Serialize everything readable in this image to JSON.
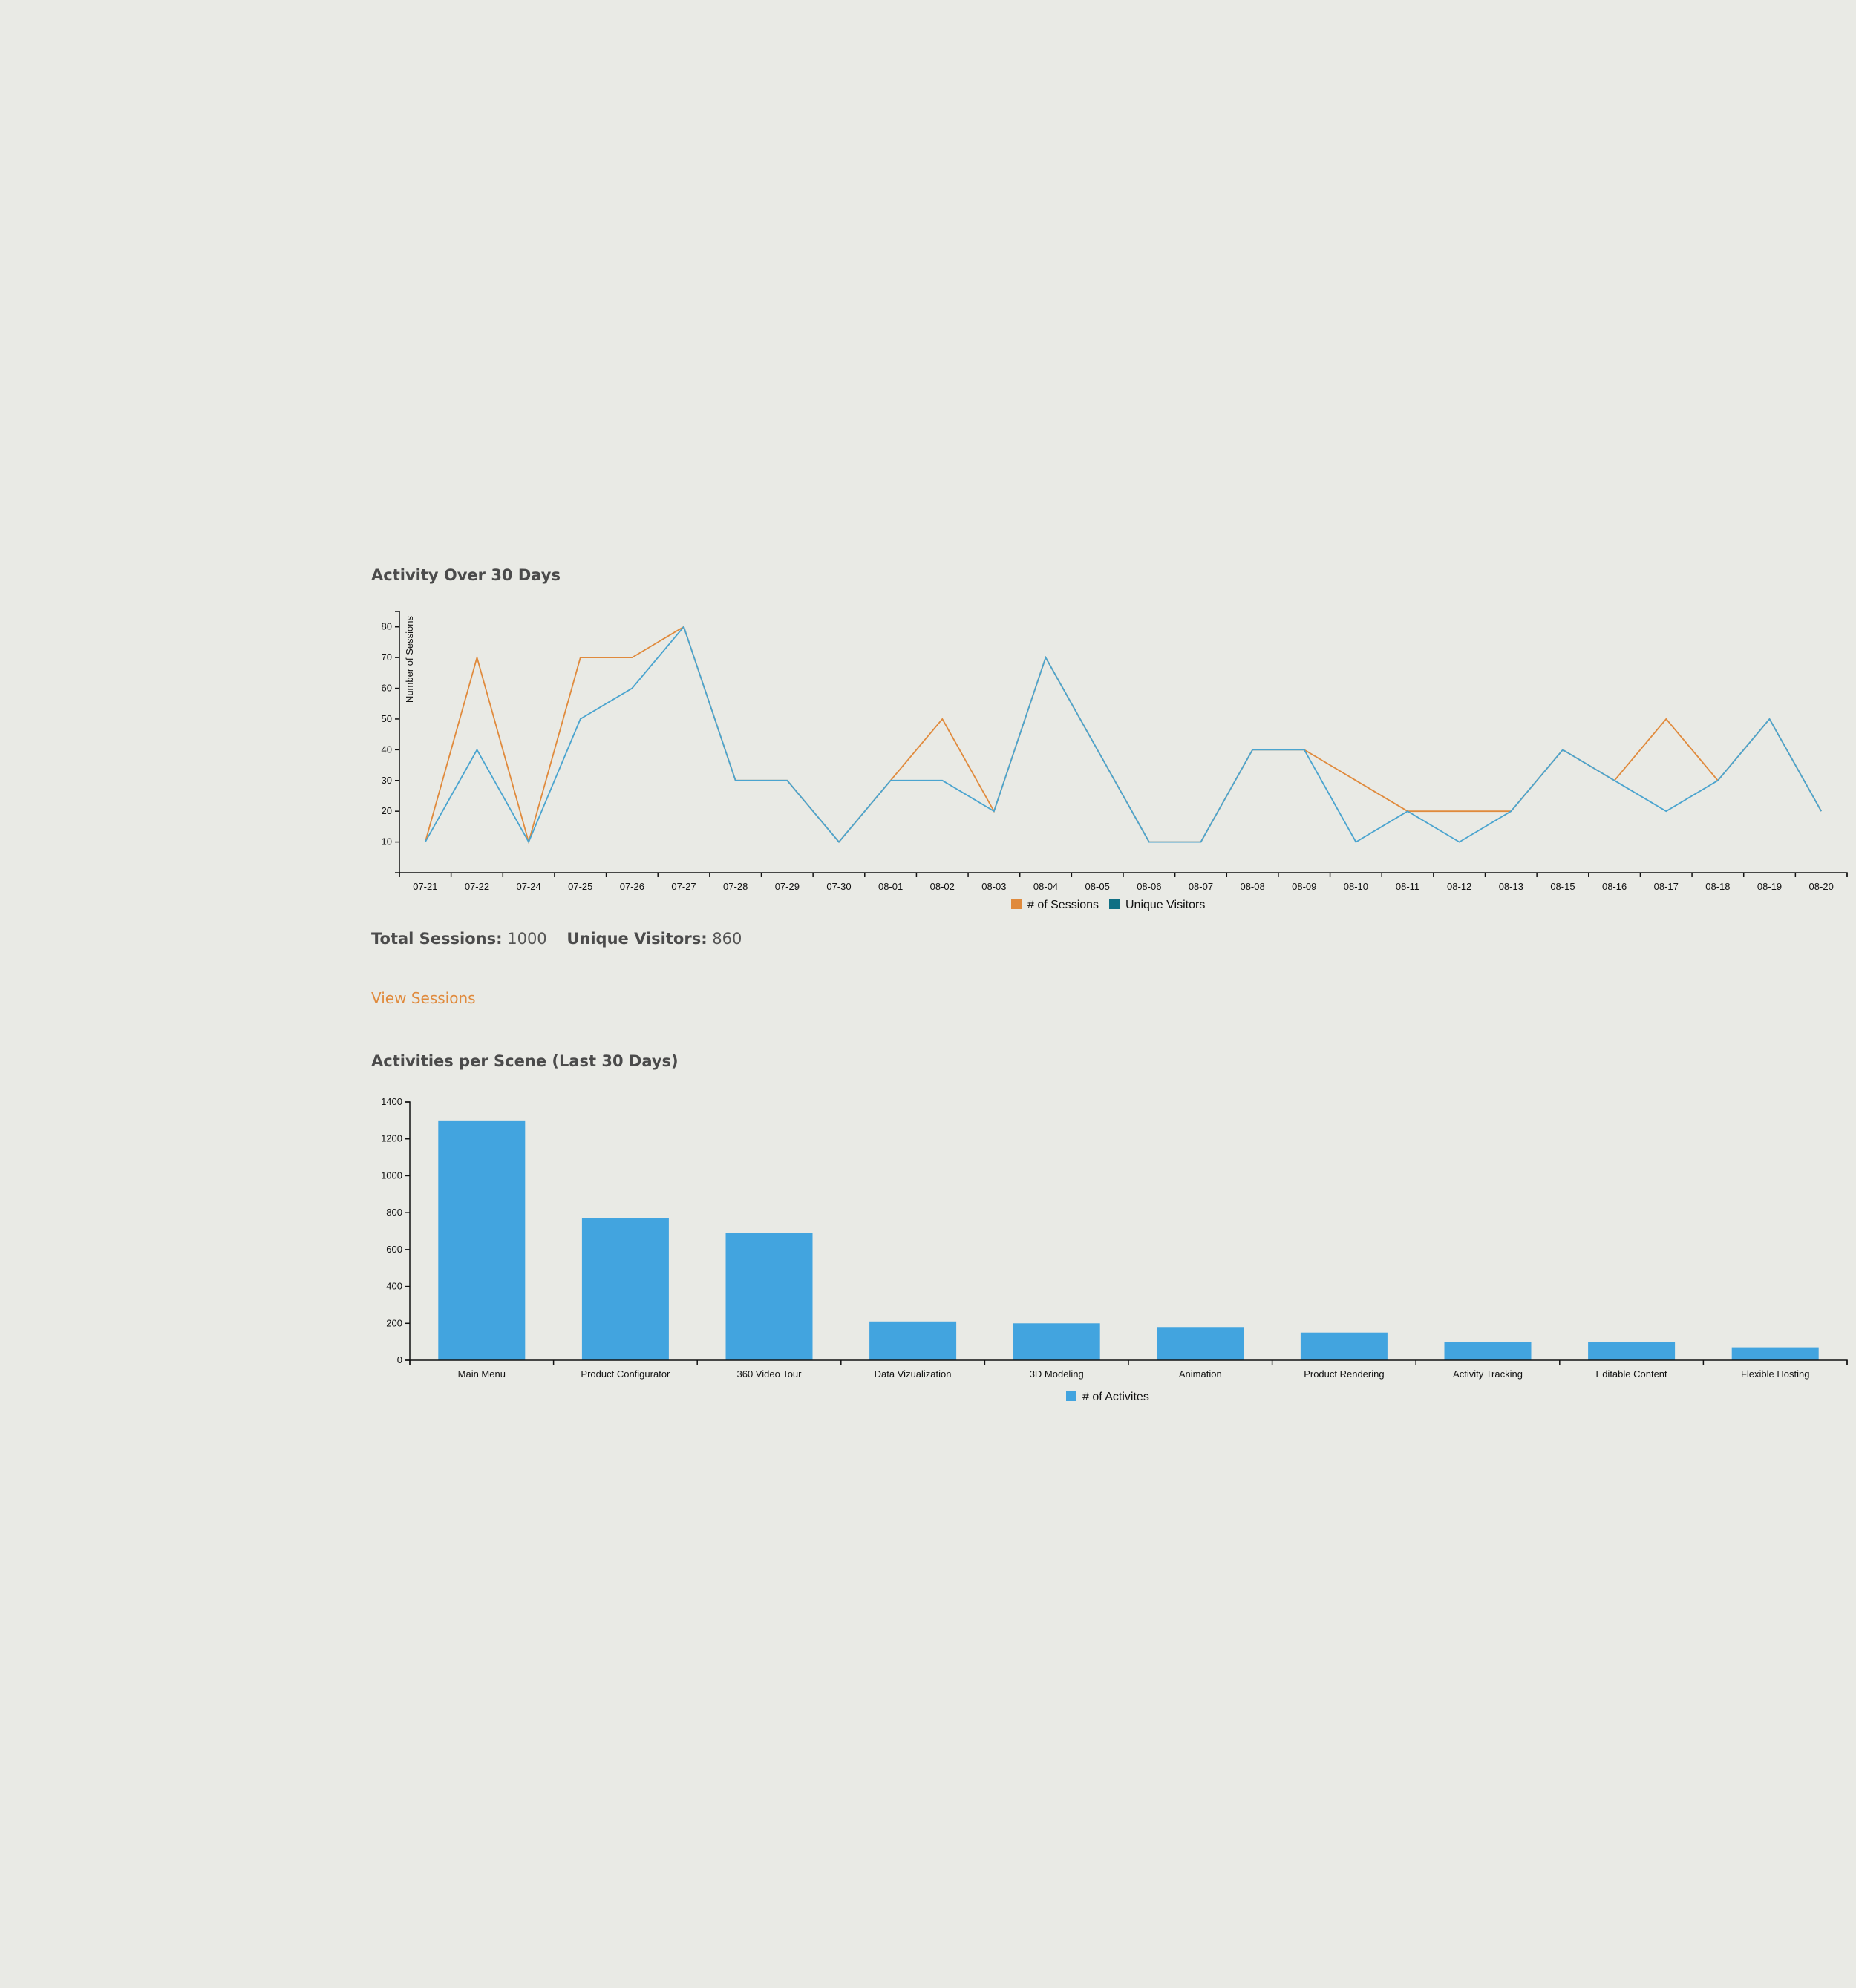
{
  "line_section": {
    "title": "Activity Over 30 Days"
  },
  "stats": {
    "total_sessions_label": "Total Sessions:",
    "total_sessions_value": "1000",
    "unique_visitors_label": "Unique Visitors:",
    "unique_visitors_value": "860"
  },
  "link": {
    "view_sessions": "View Sessions"
  },
  "bar_section": {
    "title": "Activities per Scene (Last 30 Days)"
  },
  "colors": {
    "sessions": "#e08a3c",
    "visitors": "#4aa4cf",
    "visitors_legend": "#0f6f84",
    "bar": "#42a4df"
  },
  "chart_data": [
    {
      "type": "line",
      "title": "Activity Over 30 Days",
      "ylabel": "Number of Sessions",
      "ylim": [
        0,
        85
      ],
      "yticks": [
        10,
        20,
        30,
        40,
        50,
        60,
        70,
        80
      ],
      "categories": [
        "07-21",
        "07-22",
        "07-24",
        "07-25",
        "07-26",
        "07-27",
        "07-28",
        "07-29",
        "07-30",
        "08-01",
        "08-02",
        "08-03",
        "08-04",
        "08-05",
        "08-06",
        "08-07",
        "08-08",
        "08-09",
        "08-10",
        "08-11",
        "08-12",
        "08-13",
        "08-15",
        "08-16",
        "08-17",
        "08-18",
        "08-19",
        "08-20"
      ],
      "series": [
        {
          "name": "# of Sessions",
          "values": [
            10,
            70,
            10,
            70,
            70,
            80,
            30,
            30,
            10,
            30,
            50,
            20,
            70,
            40,
            10,
            10,
            40,
            40,
            30,
            20,
            20,
            20,
            40,
            30,
            50,
            30,
            50,
            20
          ]
        },
        {
          "name": "Unique Visitors",
          "values": [
            10,
            40,
            10,
            50,
            60,
            80,
            30,
            30,
            10,
            30,
            30,
            20,
            70,
            40,
            10,
            10,
            40,
            40,
            10,
            20,
            10,
            20,
            40,
            30,
            20,
            30,
            50,
            20
          ]
        }
      ],
      "legend_position": "bottom",
      "grid": false
    },
    {
      "type": "bar",
      "title": "Activities per Scene (Last 30 Days)",
      "categories": [
        "Main Menu",
        "Product Configurator",
        "360 Video Tour",
        "Data Vizualization",
        "3D Modeling",
        "Animation",
        "Product Rendering",
        "Activity Tracking",
        "Editable Content",
        "Flexible Hosting"
      ],
      "series": [
        {
          "name": "# of Activites",
          "values": [
            1300,
            770,
            690,
            210,
            200,
            180,
            150,
            100,
            100,
            70
          ]
        }
      ],
      "ylim": [
        0,
        1400
      ],
      "yticks": [
        0,
        200,
        400,
        600,
        800,
        1000,
        1200,
        1400
      ],
      "legend_position": "bottom",
      "grid": false
    }
  ]
}
